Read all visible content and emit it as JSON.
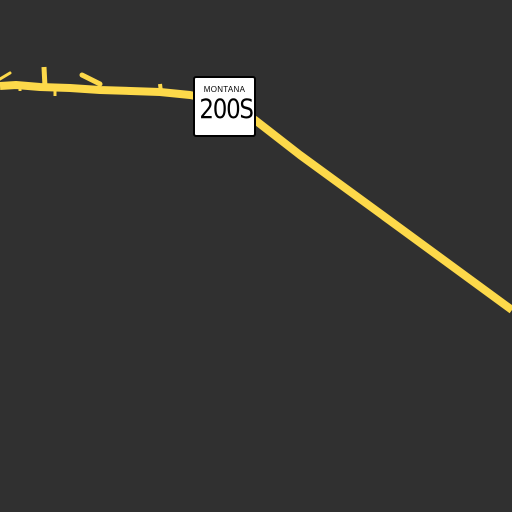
{
  "map": {
    "background_color": "#303030",
    "road_color": "#fdd94a",
    "route_shield": {
      "state": "MONTANA",
      "number": "200S",
      "shield_type": "state-route-shield"
    }
  }
}
